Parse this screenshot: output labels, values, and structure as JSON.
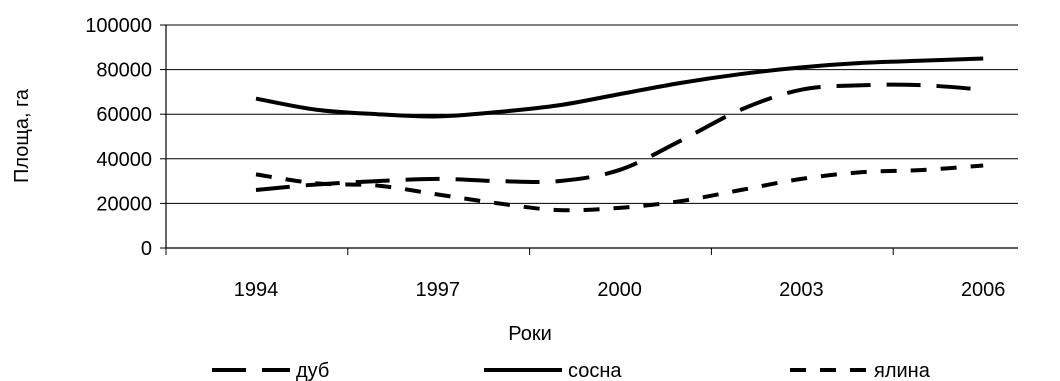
{
  "chart_data": {
    "type": "line",
    "x": [
      1994,
      1995,
      1996,
      1997,
      1998,
      1999,
      2000,
      2001,
      2002,
      2003,
      2004,
      2005,
      2006
    ],
    "x_tick_labels": [
      "1994",
      "1997",
      "2000",
      "2003",
      "2006"
    ],
    "y_tick_labels": [
      "0",
      "20000",
      "40000",
      "60000",
      "80000",
      "100000"
    ],
    "ylim": [
      0,
      100000
    ],
    "xlabel": "Роки",
    "ylabel": "Площа, га",
    "grid": "horizontal",
    "legend_position": "bottom",
    "series": [
      {
        "name": "дуб",
        "style": "long-dash",
        "values": [
          26000,
          28500,
          30000,
          31000,
          30000,
          30000,
          35000,
          48000,
          62000,
          71000,
          73000,
          73000,
          71000
        ]
      },
      {
        "name": "сосна",
        "style": "solid",
        "values": [
          67000,
          62000,
          60000,
          59000,
          61000,
          64000,
          69000,
          74000,
          78000,
          81000,
          83000,
          84000,
          85000
        ]
      },
      {
        "name": "ялина",
        "style": "short-dash",
        "values": [
          33000,
          29000,
          28000,
          24000,
          20000,
          17000,
          18000,
          21000,
          26000,
          31000,
          34000,
          35000,
          37000
        ]
      }
    ]
  }
}
